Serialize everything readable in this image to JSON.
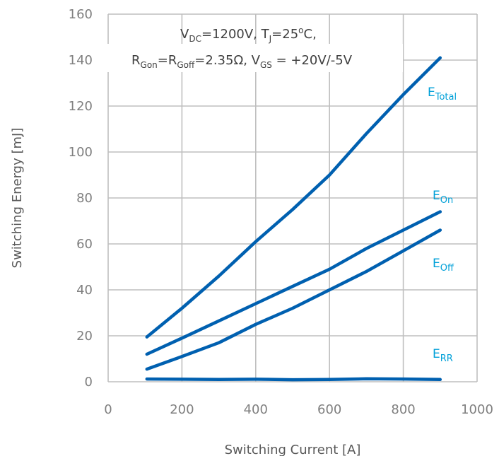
{
  "chart_data": {
    "type": "line",
    "xlabel": "Switching Current [A]",
    "ylabel": "Switching Energy [mJ]",
    "xlim": [
      0,
      1000
    ],
    "ylim": [
      0,
      160
    ],
    "xticks": [
      0,
      200,
      400,
      600,
      800,
      1000
    ],
    "yticks": [
      0,
      20,
      40,
      60,
      80,
      100,
      120,
      140,
      160
    ],
    "grid": true,
    "annotation": {
      "line1": {
        "v": "V",
        "v_sub": "DC",
        "v_val": "=1200V, T",
        "t_sub": "J",
        "t_val": "=25",
        "deg": "o",
        "t_unit": "C,"
      },
      "line2": {
        "r": "R",
        "r1_sub": "Gon",
        "eq": "=R",
        "r2_sub": "Goff",
        "r_val": "=2.35Ω,  V",
        "vgs_sub": "GS",
        "vgs_val": " = +20V/-5V"
      }
    },
    "series": [
      {
        "name": "E",
        "name_sub": "Total",
        "color": "#0060b0",
        "label_color": "#00a0d8",
        "points": [
          [
            105,
            19.5
          ],
          [
            200,
            32
          ],
          [
            300,
            46
          ],
          [
            400,
            61
          ],
          [
            500,
            75
          ],
          [
            600,
            90
          ],
          [
            700,
            108
          ],
          [
            800,
            125
          ],
          [
            900,
            141
          ]
        ]
      },
      {
        "name": "E",
        "name_sub": "On",
        "color": "#0060b0",
        "label_color": "#00a0d8",
        "points": [
          [
            105,
            12
          ],
          [
            200,
            19
          ],
          [
            300,
            26.5
          ],
          [
            400,
            34
          ],
          [
            500,
            41.5
          ],
          [
            600,
            49
          ],
          [
            700,
            58
          ],
          [
            800,
            66
          ],
          [
            900,
            74
          ]
        ]
      },
      {
        "name": "E",
        "name_sub": "Off",
        "color": "#0060b0",
        "label_color": "#00a0d8",
        "points": [
          [
            105,
            5.5
          ],
          [
            200,
            11
          ],
          [
            300,
            17
          ],
          [
            400,
            25
          ],
          [
            500,
            32
          ],
          [
            600,
            40
          ],
          [
            700,
            48
          ],
          [
            800,
            57
          ],
          [
            900,
            66
          ]
        ]
      },
      {
        "name": "E",
        "name_sub": "RR",
        "color": "#0060b0",
        "label_color": "#00a0d8",
        "points": [
          [
            105,
            1.2
          ],
          [
            200,
            1.1
          ],
          [
            300,
            1.0
          ],
          [
            400,
            1.1
          ],
          [
            500,
            0.9
          ],
          [
            600,
            1.0
          ],
          [
            700,
            1.3
          ],
          [
            800,
            1.2
          ],
          [
            900,
            1.0
          ]
        ]
      }
    ]
  }
}
